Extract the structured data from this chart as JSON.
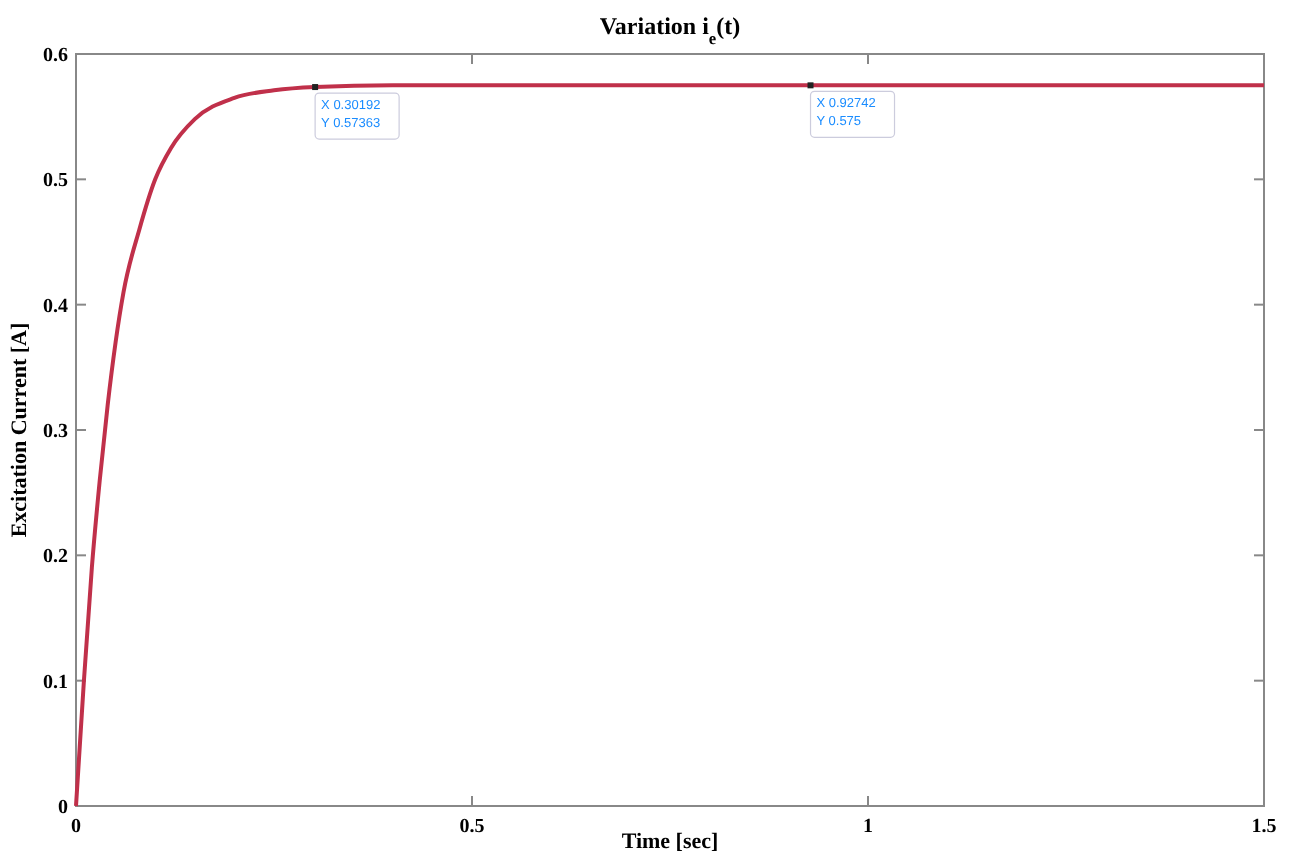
{
  "chart_data": {
    "type": "line",
    "title": "Variation  i$_{e}$(t)",
    "xlabel": "Time [sec]",
    "ylabel": "Excitation Current [A]",
    "x": [
      0,
      0.01,
      0.02,
      0.03,
      0.04,
      0.05,
      0.06,
      0.08,
      0.1,
      0.12,
      0.15,
      0.2,
      0.25,
      0.30192,
      0.4,
      0.6,
      0.92742,
      1.5
    ],
    "series": [
      {
        "color": "#c0304a",
        "values": [
          0,
          0.1,
          0.19,
          0.26,
          0.32,
          0.37,
          0.41,
          0.46,
          0.5,
          0.525,
          0.548,
          0.565,
          0.571,
          0.57363,
          0.575,
          0.575,
          0.575,
          0.575
        ]
      }
    ],
    "xlim": [
      0,
      1.5
    ],
    "xticks": [
      0,
      0.5,
      1,
      1.5
    ],
    "ylim": [
      0,
      0.6
    ],
    "yticks": [
      0,
      0.1,
      0.2,
      0.3,
      0.4,
      0.5,
      0.6
    ],
    "marker": "none",
    "line_style": "solid",
    "annotations": [
      {
        "text": "X 0.30192\nY 0.57363",
        "x": 0.30192,
        "y": 0.57363
      },
      {
        "text": "X 0.92742\nY 0.575",
        "x": 0.92742,
        "y": 0.575
      }
    ]
  }
}
